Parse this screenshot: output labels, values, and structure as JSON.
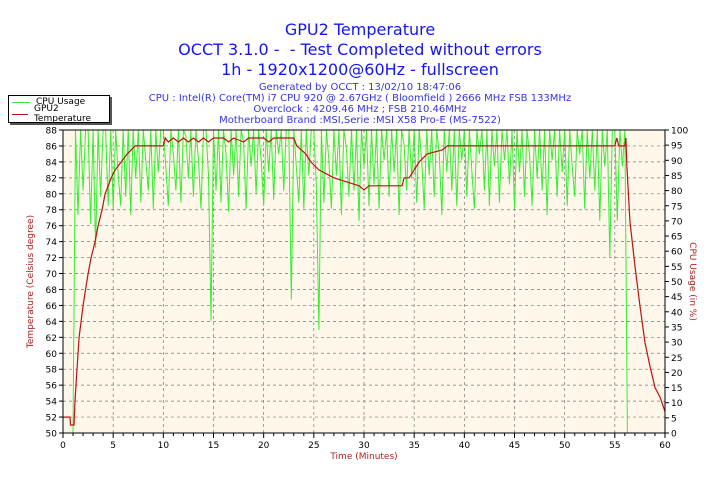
{
  "header": {
    "title": "GPU2 Temperature",
    "subtitle": "OCCT 3.1.0 -  - Test Completed without errors",
    "mode": "1h - 1920x1200@60Hz - fullscreen",
    "info": [
      "Generated by OCCT : 13/02/10 18:47:06",
      "CPU : Intel(R) Core(TM) i7 CPU 920 @ 2.67GHz ( Bloomfield ) 2666 MHz FSB 133MHz",
      "Overclock : 4209.46 MHz ; FSB 210.46MHz",
      "Motherboard Brand :MSI,Serie :MSI X58 Pro-E (MS-7522)"
    ]
  },
  "chart_data": {
    "type": "line",
    "title": "GPU2 Temperature",
    "xlabel": "Time (Minutes)",
    "ylabel": "Temperature (Celsius degree)",
    "y2label": "CPU Usage (in %)",
    "xlim": [
      0,
      60
    ],
    "ylim": [
      50,
      88
    ],
    "y2lim": [
      0,
      100
    ],
    "xticks": [
      0,
      5,
      10,
      15,
      20,
      25,
      30,
      35,
      40,
      45,
      50,
      55,
      60
    ],
    "yticks": [
      50,
      52,
      54,
      56,
      58,
      60,
      62,
      64,
      66,
      68,
      70,
      72,
      74,
      76,
      78,
      80,
      82,
      84,
      86,
      88
    ],
    "y2ticks": [
      0,
      5,
      10,
      15,
      20,
      25,
      30,
      35,
      40,
      45,
      50,
      55,
      60,
      65,
      70,
      75,
      80,
      85,
      90,
      95,
      100
    ],
    "grid": true,
    "legend": "top-left",
    "colors": {
      "cpu": "#33ee33",
      "temp": "#bb1111",
      "plot_bg": "#fff8ea",
      "axis_label": "#aa2222"
    },
    "series": [
      {
        "name": "CPU Usage",
        "axis": "right",
        "x_step": 0.25,
        "values": [
          0,
          0,
          0,
          0,
          0,
          100,
          72,
          100,
          80,
          100,
          100,
          69,
          100,
          61,
          100,
          78,
          100,
          100,
          75,
          100,
          74,
          100,
          85,
          75,
          100,
          78,
          100,
          72,
          100,
          84,
          100,
          76,
          100,
          90,
          80,
          100,
          74,
          100,
          86,
          100,
          100,
          88,
          75,
          100,
          92,
          80,
          100,
          76,
          100,
          98,
          84,
          100,
          78,
          100,
          90,
          74,
          100,
          100,
          85,
          37,
          100,
          80,
          100,
          76,
          100,
          92,
          73,
          100,
          85,
          100,
          78,
          100,
          96,
          74,
          100,
          88,
          100,
          79,
          100,
          90,
          75,
          100,
          86,
          100,
          77,
          100,
          92,
          100,
          80,
          100,
          100,
          44,
          100,
          88,
          76,
          100,
          74,
          100,
          85,
          100,
          100,
          82,
          34,
          100,
          76,
          100,
          90,
          74,
          100,
          85,
          100,
          72,
          100,
          94,
          78,
          100,
          80,
          100,
          70,
          100,
          88,
          100,
          75,
          100,
          82,
          100,
          74,
          100,
          90,
          100,
          78,
          100,
          86,
          100,
          72,
          100,
          95,
          80,
          100,
          84,
          100,
          76,
          100,
          90,
          74,
          100,
          85,
          100,
          78,
          100,
          92,
          72,
          100,
          86,
          100,
          80,
          100,
          75,
          100,
          90,
          100,
          78,
          100,
          86,
          74,
          100,
          92,
          100,
          80,
          100,
          75,
          100,
          88,
          100,
          76,
          100,
          90,
          100,
          82,
          100,
          74,
          100,
          86,
          100,
          78,
          100,
          92,
          75,
          100,
          84,
          100,
          80,
          100,
          72,
          100,
          90,
          100,
          78,
          100,
          86,
          100,
          75,
          100,
          88,
          78,
          100,
          92,
          100,
          74,
          100,
          84,
          100,
          80,
          100,
          70,
          100,
          88,
          100,
          58,
          100,
          100,
          70,
          100,
          88,
          100,
          0,
          0,
          0,
          0,
          0,
          0,
          0,
          0,
          0,
          0,
          0,
          0,
          0,
          0,
          0,
          0
        ]
      },
      {
        "name": "GPU2 Temperature",
        "axis": "left",
        "points": [
          [
            0,
            52
          ],
          [
            0.7,
            52
          ],
          [
            0.75,
            51
          ],
          [
            1.1,
            51
          ],
          [
            1.2,
            54
          ],
          [
            1.4,
            58
          ],
          [
            1.6,
            62
          ],
          [
            2,
            66
          ],
          [
            2.5,
            70
          ],
          [
            2.8,
            72
          ],
          [
            3.2,
            74
          ],
          [
            3.5,
            76
          ],
          [
            3.9,
            78
          ],
          [
            4.2,
            80
          ],
          [
            4.5,
            81
          ],
          [
            4.8,
            82
          ],
          [
            5.2,
            83
          ],
          [
            5.8,
            84
          ],
          [
            6.4,
            85
          ],
          [
            7.2,
            86
          ],
          [
            10,
            86
          ],
          [
            10.2,
            87
          ],
          [
            10.5,
            86.5
          ],
          [
            11,
            87
          ],
          [
            11.5,
            86.5
          ],
          [
            12,
            87
          ],
          [
            12.5,
            86.5
          ],
          [
            13,
            87
          ],
          [
            13.5,
            86.5
          ],
          [
            14,
            87
          ],
          [
            14.5,
            86.5
          ],
          [
            15,
            87
          ],
          [
            16,
            87
          ],
          [
            16.5,
            86.5
          ],
          [
            17,
            87
          ],
          [
            18,
            86.5
          ],
          [
            18.5,
            87
          ],
          [
            20,
            87
          ],
          [
            20.5,
            86.5
          ],
          [
            21,
            87
          ],
          [
            23,
            87
          ],
          [
            23.3,
            86
          ],
          [
            24.2,
            85
          ],
          [
            24.7,
            84
          ],
          [
            25.5,
            83
          ],
          [
            27,
            82
          ],
          [
            29.5,
            81
          ],
          [
            30,
            80.5
          ],
          [
            30.5,
            81
          ],
          [
            33.8,
            81
          ],
          [
            34,
            82
          ],
          [
            34.5,
            82
          ],
          [
            35,
            83
          ],
          [
            35.5,
            84
          ],
          [
            36.3,
            85
          ],
          [
            37.8,
            85.5
          ],
          [
            38.3,
            86
          ],
          [
            55,
            86
          ],
          [
            55.2,
            87
          ],
          [
            55.4,
            86
          ],
          [
            56,
            86
          ],
          [
            56.1,
            87
          ],
          [
            56.2,
            83.4
          ],
          [
            56.5,
            76.6
          ],
          [
            57,
            71
          ],
          [
            57.5,
            66
          ],
          [
            58,
            61.4
          ],
          [
            58.5,
            58.4
          ],
          [
            59,
            55.7
          ],
          [
            59.5,
            54.5
          ],
          [
            60,
            52.7
          ]
        ]
      }
    ]
  }
}
